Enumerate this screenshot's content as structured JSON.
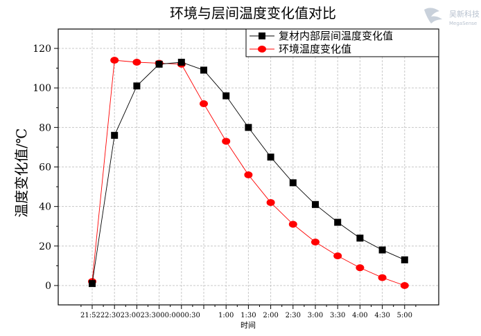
{
  "watermark": {
    "icon": "bird-logo-icon",
    "line1": "吴新科技",
    "line2": "MegaSense",
    "color": "#b8c2cf"
  },
  "chart_data": {
    "type": "line",
    "title": "环境与层间温度变化值对比",
    "xlabel": "时间",
    "ylabel": "温度变化值/℃",
    "categories": [
      "21:52",
      "22:30",
      "23:00",
      "23:30",
      "0:00",
      "0:30",
      "1:00",
      "1:30",
      "2:00",
      "2:30",
      "3:00",
      "3:30",
      "4:00",
      "4:30",
      "5:00"
    ],
    "tick_label_text": "21:5222:3023:0023:3000:0000:30",
    "ylim": [
      -10,
      130
    ],
    "yticks": [
      0,
      20,
      40,
      60,
      80,
      100,
      120
    ],
    "grid": true,
    "legend_position": "top-right",
    "series": [
      {
        "name": "复材内部层间温度变化值",
        "color": "#000000",
        "marker": "square",
        "values": [
          1,
          76,
          101,
          112,
          113,
          109,
          96,
          80,
          65,
          52,
          41,
          32,
          24,
          18,
          13
        ]
      },
      {
        "name": "环境温度变化值",
        "color": "#ff0000",
        "marker": "circle",
        "values": [
          2,
          114,
          113,
          112.5,
          112,
          92,
          73,
          56,
          42,
          31,
          22,
          15,
          9,
          4,
          0
        ]
      }
    ]
  }
}
